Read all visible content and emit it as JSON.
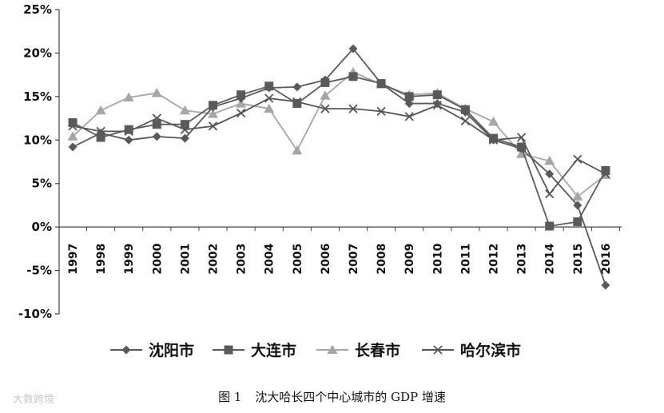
{
  "chart_data": {
    "type": "line",
    "x": [
      "1997",
      "1998",
      "1999",
      "2000",
      "2001",
      "2002",
      "2003",
      "2004",
      "2005",
      "2006",
      "2007",
      "2008",
      "2009",
      "2010",
      "2011",
      "2012",
      "2013",
      "2014",
      "2015",
      "2016"
    ],
    "yticks": [
      "25%",
      "20%",
      "15%",
      "10%",
      "5%",
      "0%",
      "-5%",
      "-10%"
    ],
    "ylim": [
      -10,
      25
    ],
    "grid": false,
    "legend_position": "bottom",
    "series": [
      {
        "name": "沈阳市",
        "marker": "diamond",
        "color": "#595959",
        "values": [
          9.2,
          10.8,
          10.0,
          10.4,
          10.2,
          13.8,
          14.8,
          16.0,
          16.1,
          16.9,
          20.5,
          16.5,
          14.2,
          14.2,
          13.2,
          10.0,
          9.0,
          6.1,
          2.5,
          -6.7
        ]
      },
      {
        "name": "大连市",
        "marker": "square",
        "color": "#5a5a5a",
        "values": [
          12.0,
          10.3,
          11.2,
          11.8,
          11.8,
          14.0,
          15.2,
          16.2,
          14.2,
          16.6,
          17.3,
          16.5,
          15.0,
          15.2,
          13.5,
          10.2,
          9.2,
          0.1,
          0.6,
          6.5
        ]
      },
      {
        "name": "长春市",
        "marker": "triangle",
        "color": "#a6a6a6",
        "values": [
          10.4,
          13.4,
          14.9,
          15.4,
          13.4,
          13.0,
          14.2,
          13.6,
          8.8,
          15.1,
          17.8,
          16.4,
          15.2,
          15.4,
          13.6,
          12.1,
          8.4,
          7.6,
          3.5,
          6.0
        ]
      },
      {
        "name": "哈尔滨市",
        "marker": "x",
        "color": "#555555",
        "values": [
          11.6,
          11.0,
          11.0,
          12.5,
          11.2,
          11.6,
          13.1,
          14.8,
          14.4,
          13.6,
          13.6,
          13.3,
          12.7,
          14.0,
          12.2,
          10.0,
          10.3,
          3.8,
          7.8,
          6.1
        ]
      }
    ]
  },
  "caption": {
    "figure": "图 1",
    "title": "沈大哈长四个中心城市的 GDP 增速"
  },
  "watermark": "大数跨境"
}
